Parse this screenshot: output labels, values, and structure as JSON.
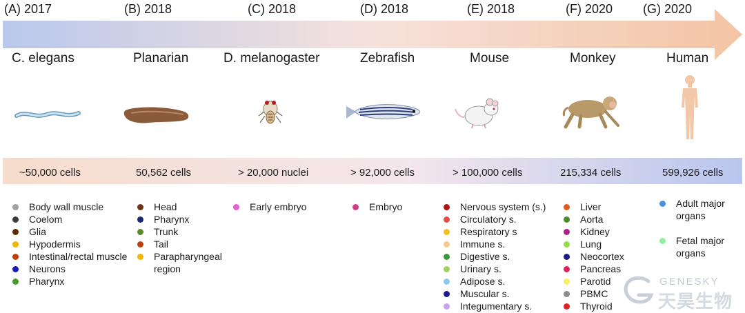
{
  "timeline": [
    {
      "year": "(A) 2017",
      "organism": "C. elegans",
      "cells": "~50,000 cells",
      "icon": "c-elegans-worm-icon",
      "legend": [
        {
          "label": "Body wall muscle",
          "color": "#9e9e9e"
        },
        {
          "label": "Coelom",
          "color": "#3a3a3a"
        },
        {
          "label": "Glia",
          "color": "#5a2d0c"
        },
        {
          "label": "Hypodermis",
          "color": "#f4b400"
        },
        {
          "label": "Intestinal/rectal muscle",
          "color": "#c0400a"
        },
        {
          "label": "Neurons",
          "color": "#1a1ab8"
        },
        {
          "label": "Pharynx",
          "color": "#4a9a2a"
        }
      ]
    },
    {
      "year": "(B) 2018",
      "organism": "Planarian",
      "cells": "50,562 cells",
      "icon": "planarian-flatworm-icon",
      "legend": [
        {
          "label": "Head",
          "color": "#6b3410"
        },
        {
          "label": "Pharynx",
          "color": "#1c2a6b"
        },
        {
          "label": "Trunk",
          "color": "#5a8a2a"
        },
        {
          "label": "Tail",
          "color": "#c0400a"
        },
        {
          "label": "Parapharyngeal\nregion",
          "color": "#f4b400"
        }
      ]
    },
    {
      "year": "(C) 2018",
      "organism": "D. melanogaster",
      "cells": "> 20,000 nuclei",
      "icon": "fruit-fly-icon",
      "legend": [
        {
          "label": "Early embryo",
          "color": "#e060d0"
        }
      ]
    },
    {
      "year": "(D) 2018",
      "organism": "Zebrafish",
      "cells": "> 92,000 cells",
      "icon": "zebrafish-icon",
      "legend": [
        {
          "label": "Embryo",
          "color": "#d63a8a"
        }
      ]
    },
    {
      "year": "(E) 2018",
      "organism": "Mouse",
      "cells": "> 100,000 cells",
      "icon": "mouse-icon",
      "legend": [
        {
          "label": "Nervous system (s.)",
          "color": "#b01010"
        },
        {
          "label": "Circulatory s.",
          "color": "#e84a4a"
        },
        {
          "label": "Respiratory s",
          "color": "#f4c020"
        },
        {
          "label": "Immune s.",
          "color": "#f8c890"
        },
        {
          "label": "Digestive s.",
          "color": "#3a9a3a"
        },
        {
          "label": "Urinary s.",
          "color": "#a0d060"
        },
        {
          "label": "Adipose s.",
          "color": "#8ac8f0"
        },
        {
          "label": "Muscular s.",
          "color": "#1a1a8a"
        },
        {
          "label": "Integumentary s.",
          "color": "#c8a0f0"
        }
      ]
    },
    {
      "year": "(F) 2020",
      "organism": "Monkey",
      "cells": "215,334 cells",
      "icon": "monkey-icon",
      "legend": [
        {
          "label": "Liver",
          "color": "#e05a1a"
        },
        {
          "label": "Aorta",
          "color": "#4a8a2a"
        },
        {
          "label": "Kidney",
          "color": "#b0208a"
        },
        {
          "label": "Lung",
          "color": "#90e040"
        },
        {
          "label": "Neocortex",
          "color": "#1a1a8a"
        },
        {
          "label": "Pancreas",
          "color": "#e0205a"
        },
        {
          "label": "Parotid",
          "color": "#f8f060"
        },
        {
          "label": "PBMC",
          "color": "#8a8a8a"
        },
        {
          "label": "Thyroid",
          "color": "#e02020"
        }
      ]
    },
    {
      "year": "(G) 2020",
      "organism": "Human",
      "cells": "599,926 cells",
      "icon": "human-figure-icon",
      "legend": [
        {
          "label": "Adult major\norgans",
          "color": "#4a90e0"
        },
        {
          "label": "Fetal major\norgans",
          "color": "#90f0a0"
        }
      ]
    }
  ],
  "watermark": {
    "brand": "GENESKY",
    "chinese": "天昊生物",
    "icon": "genesky-logo-icon"
  },
  "colors": {
    "arrow_start": "#b9c8ec",
    "arrow_end": "#f4c4a4",
    "band_start": "#f6dccb",
    "band_end": "#b9c6ee"
  }
}
